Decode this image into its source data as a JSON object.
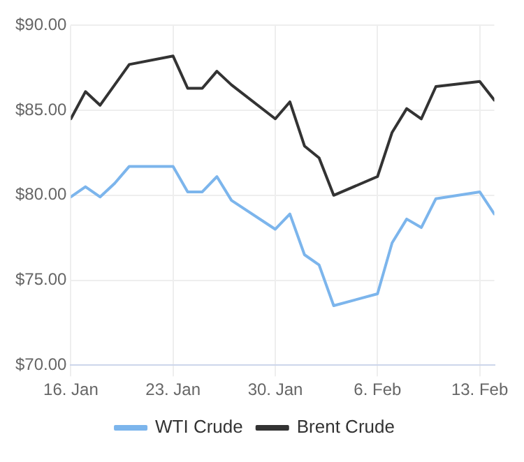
{
  "chart_data": {
    "type": "line",
    "x": [
      "--01-16",
      "--01-17",
      "--01-18",
      "--01-19",
      "--01-20",
      "--01-23",
      "--01-24",
      "--01-25",
      "--01-26",
      "--01-27",
      "--01-30",
      "--01-31",
      "--02-01",
      "--02-02",
      "--02-03",
      "--02-06",
      "--02-07",
      "--02-08",
      "--02-09",
      "--02-10",
      "--02-13",
      "--02-14"
    ],
    "series": [
      {
        "name": "WTI Crude",
        "color": "#7cb5ec",
        "values": [
          79.9,
          80.5,
          79.9,
          80.7,
          81.7,
          81.7,
          80.2,
          80.2,
          81.1,
          79.7,
          78.0,
          78.9,
          76.5,
          75.9,
          73.5,
          74.2,
          77.2,
          78.6,
          78.1,
          79.8,
          80.2,
          78.9
        ]
      },
      {
        "name": "Brent Crude",
        "color": "#333333",
        "values": [
          84.5,
          86.1,
          85.3,
          86.5,
          87.7,
          88.2,
          86.3,
          86.3,
          87.3,
          86.5,
          84.5,
          85.5,
          82.9,
          82.2,
          80.0,
          81.1,
          83.7,
          85.1,
          84.5,
          86.4,
          86.7,
          85.6
        ]
      }
    ],
    "xlim": [
      "--01-16",
      "--02-14"
    ],
    "xticks": [
      {
        "value": "--01-16",
        "label": "16. Jan"
      },
      {
        "value": "--01-23",
        "label": "23. Jan"
      },
      {
        "value": "--01-30",
        "label": "30. Jan"
      },
      {
        "value": "--02-06",
        "label": "6. Feb"
      },
      {
        "value": "--02-13",
        "label": "13. Feb"
      }
    ],
    "ylim": [
      70,
      90
    ],
    "yticks": [
      {
        "value": 70,
        "label": "$70.00"
      },
      {
        "value": 75,
        "label": "$75.00"
      },
      {
        "value": 80,
        "label": "$80.00"
      },
      {
        "value": 85,
        "label": "$85.00"
      },
      {
        "value": 90,
        "label": "$90.00"
      }
    ],
    "grid": true,
    "legend": "bottom",
    "marker": "none",
    "line_style": "solid"
  }
}
